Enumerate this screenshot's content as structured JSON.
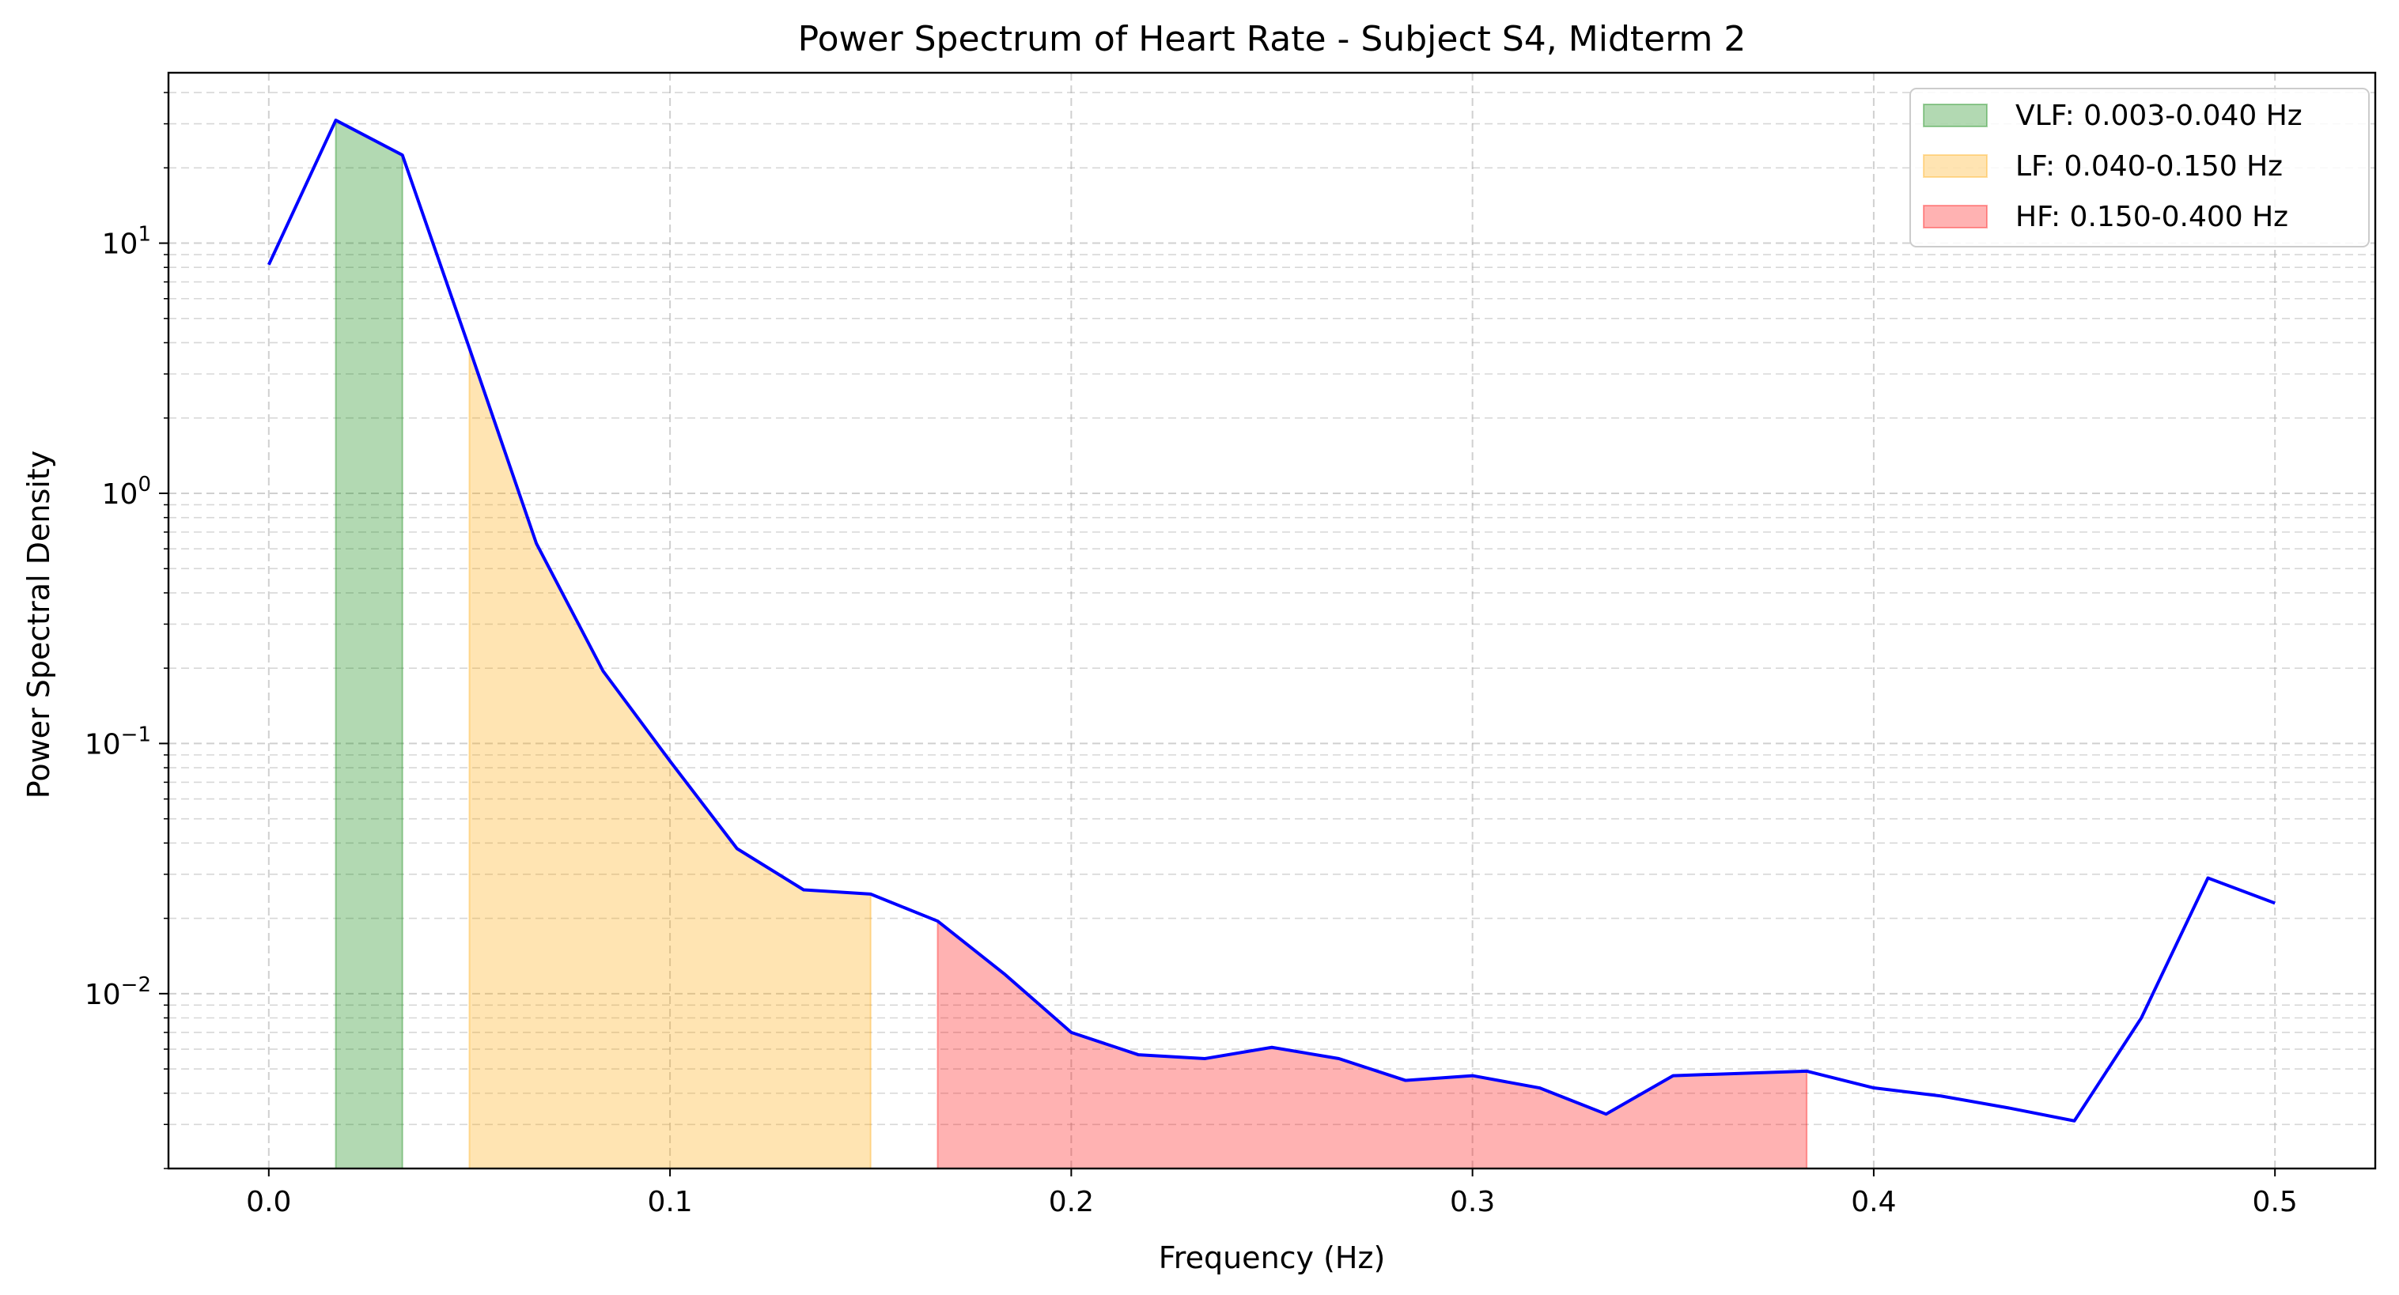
{
  "chart_data": {
    "type": "line",
    "title": "Power Spectrum of Heart Rate - Subject S4, Midterm 2",
    "xlabel": "Frequency (Hz)",
    "ylabel": "Power Spectral Density",
    "y_scale": "log",
    "xlim": [
      -0.025,
      0.525
    ],
    "ylim": [
      0.002,
      48
    ],
    "grid": true,
    "legend_position": "top-right",
    "x_ticks": [
      {
        "value": 0.0,
        "label": "0.0"
      },
      {
        "value": 0.1,
        "label": "0.1"
      },
      {
        "value": 0.2,
        "label": "0.2"
      },
      {
        "value": 0.3,
        "label": "0.3"
      },
      {
        "value": 0.4,
        "label": "0.4"
      },
      {
        "value": 0.5,
        "label": "0.5"
      }
    ],
    "y_ticks": [
      {
        "value": 0.01,
        "base": "10",
        "exp": "−2"
      },
      {
        "value": 0.1,
        "base": "10",
        "exp": "−1"
      },
      {
        "value": 1,
        "base": "10",
        "exp": "0"
      },
      {
        "value": 10,
        "base": "10",
        "exp": "1"
      }
    ],
    "series": [
      {
        "color": "#0000ff",
        "x": [
          0.0,
          0.0167,
          0.0333,
          0.05,
          0.0667,
          0.0833,
          0.1,
          0.1167,
          0.1333,
          0.15,
          0.1667,
          0.1833,
          0.2,
          0.2167,
          0.2333,
          0.25,
          0.2667,
          0.2833,
          0.3,
          0.3167,
          0.3333,
          0.35,
          0.3667,
          0.3833,
          0.4,
          0.4167,
          0.4333,
          0.45,
          0.4667,
          0.4833,
          0.5
        ],
        "y": [
          8.2,
          31.0,
          22.5,
          3.8,
          0.63,
          0.195,
          0.085,
          0.038,
          0.026,
          0.025,
          0.0195,
          0.012,
          0.007,
          0.0057,
          0.0055,
          0.0061,
          0.0055,
          0.0045,
          0.0047,
          0.0042,
          0.0033,
          0.0047,
          0.0048,
          0.0049,
          0.0042,
          0.0039,
          0.0035,
          0.0031,
          0.008,
          0.029,
          0.023
        ]
      }
    ],
    "bands": [
      {
        "label": "VLF: 0.003-0.040 Hz",
        "color": "#008000",
        "x_from": 0.0167,
        "x_to": 0.0333
      },
      {
        "label": "LF: 0.040-0.150 Hz",
        "color": "#ffa500",
        "x_from": 0.05,
        "x_to": 0.15
      },
      {
        "label": "HF: 0.150-0.400 Hz",
        "color": "#ff0000",
        "x_from": 0.1667,
        "x_to": 0.3833
      }
    ]
  }
}
